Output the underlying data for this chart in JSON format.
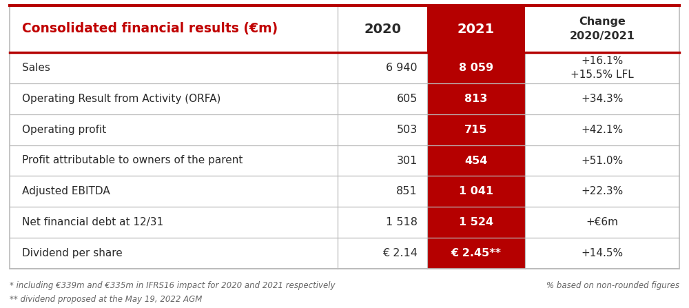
{
  "title": "Consolidated financial results (€m)",
  "title_color": "#C00000",
  "header_2020": "2020",
  "header_2021": "2021",
  "header_change": "Change\n2020/2021",
  "header_text_color_other": "#2a2a2a",
  "rows": [
    {
      "label": "Sales",
      "val2020": "6 940",
      "val2021": "8 059",
      "change": "+16.1%\n+15.5% LFL"
    },
    {
      "label": "Operating Result from Activity (ORFA)",
      "val2020": "605",
      "val2021": "813",
      "change": "+34.3%"
    },
    {
      "label": "Operating profit",
      "val2020": "503",
      "val2021": "715",
      "change": "+42.1%"
    },
    {
      "label": "Profit attributable to owners of the parent",
      "val2020": "301",
      "val2021": "454",
      "change": "+51.0%"
    },
    {
      "label": "Adjusted EBITDA",
      "val2020": "851",
      "val2021": "1 041",
      "change": "+22.3%"
    },
    {
      "label": "Net financial debt at 12/31",
      "val2020": "1 518",
      "val2021": "1 524",
      "change": "+€6m"
    },
    {
      "label": "Dividend per share",
      "val2020": "€ 2.14",
      "val2021": "€ 2.45**",
      "change": "+14.5%"
    }
  ],
  "footnote1": "* including €339m and €335m in IFRS16 impact for 2020 and 2021 respectively",
  "footnote2": "** dividend proposed at the May 19, 2022 AGM",
  "footnote3": "% based on non-rounded figures",
  "red_color": "#B50000",
  "row_line_color": "#BBBBBB",
  "outer_border_color": "#BBBBBB",
  "text_dark": "#2a2a2a"
}
